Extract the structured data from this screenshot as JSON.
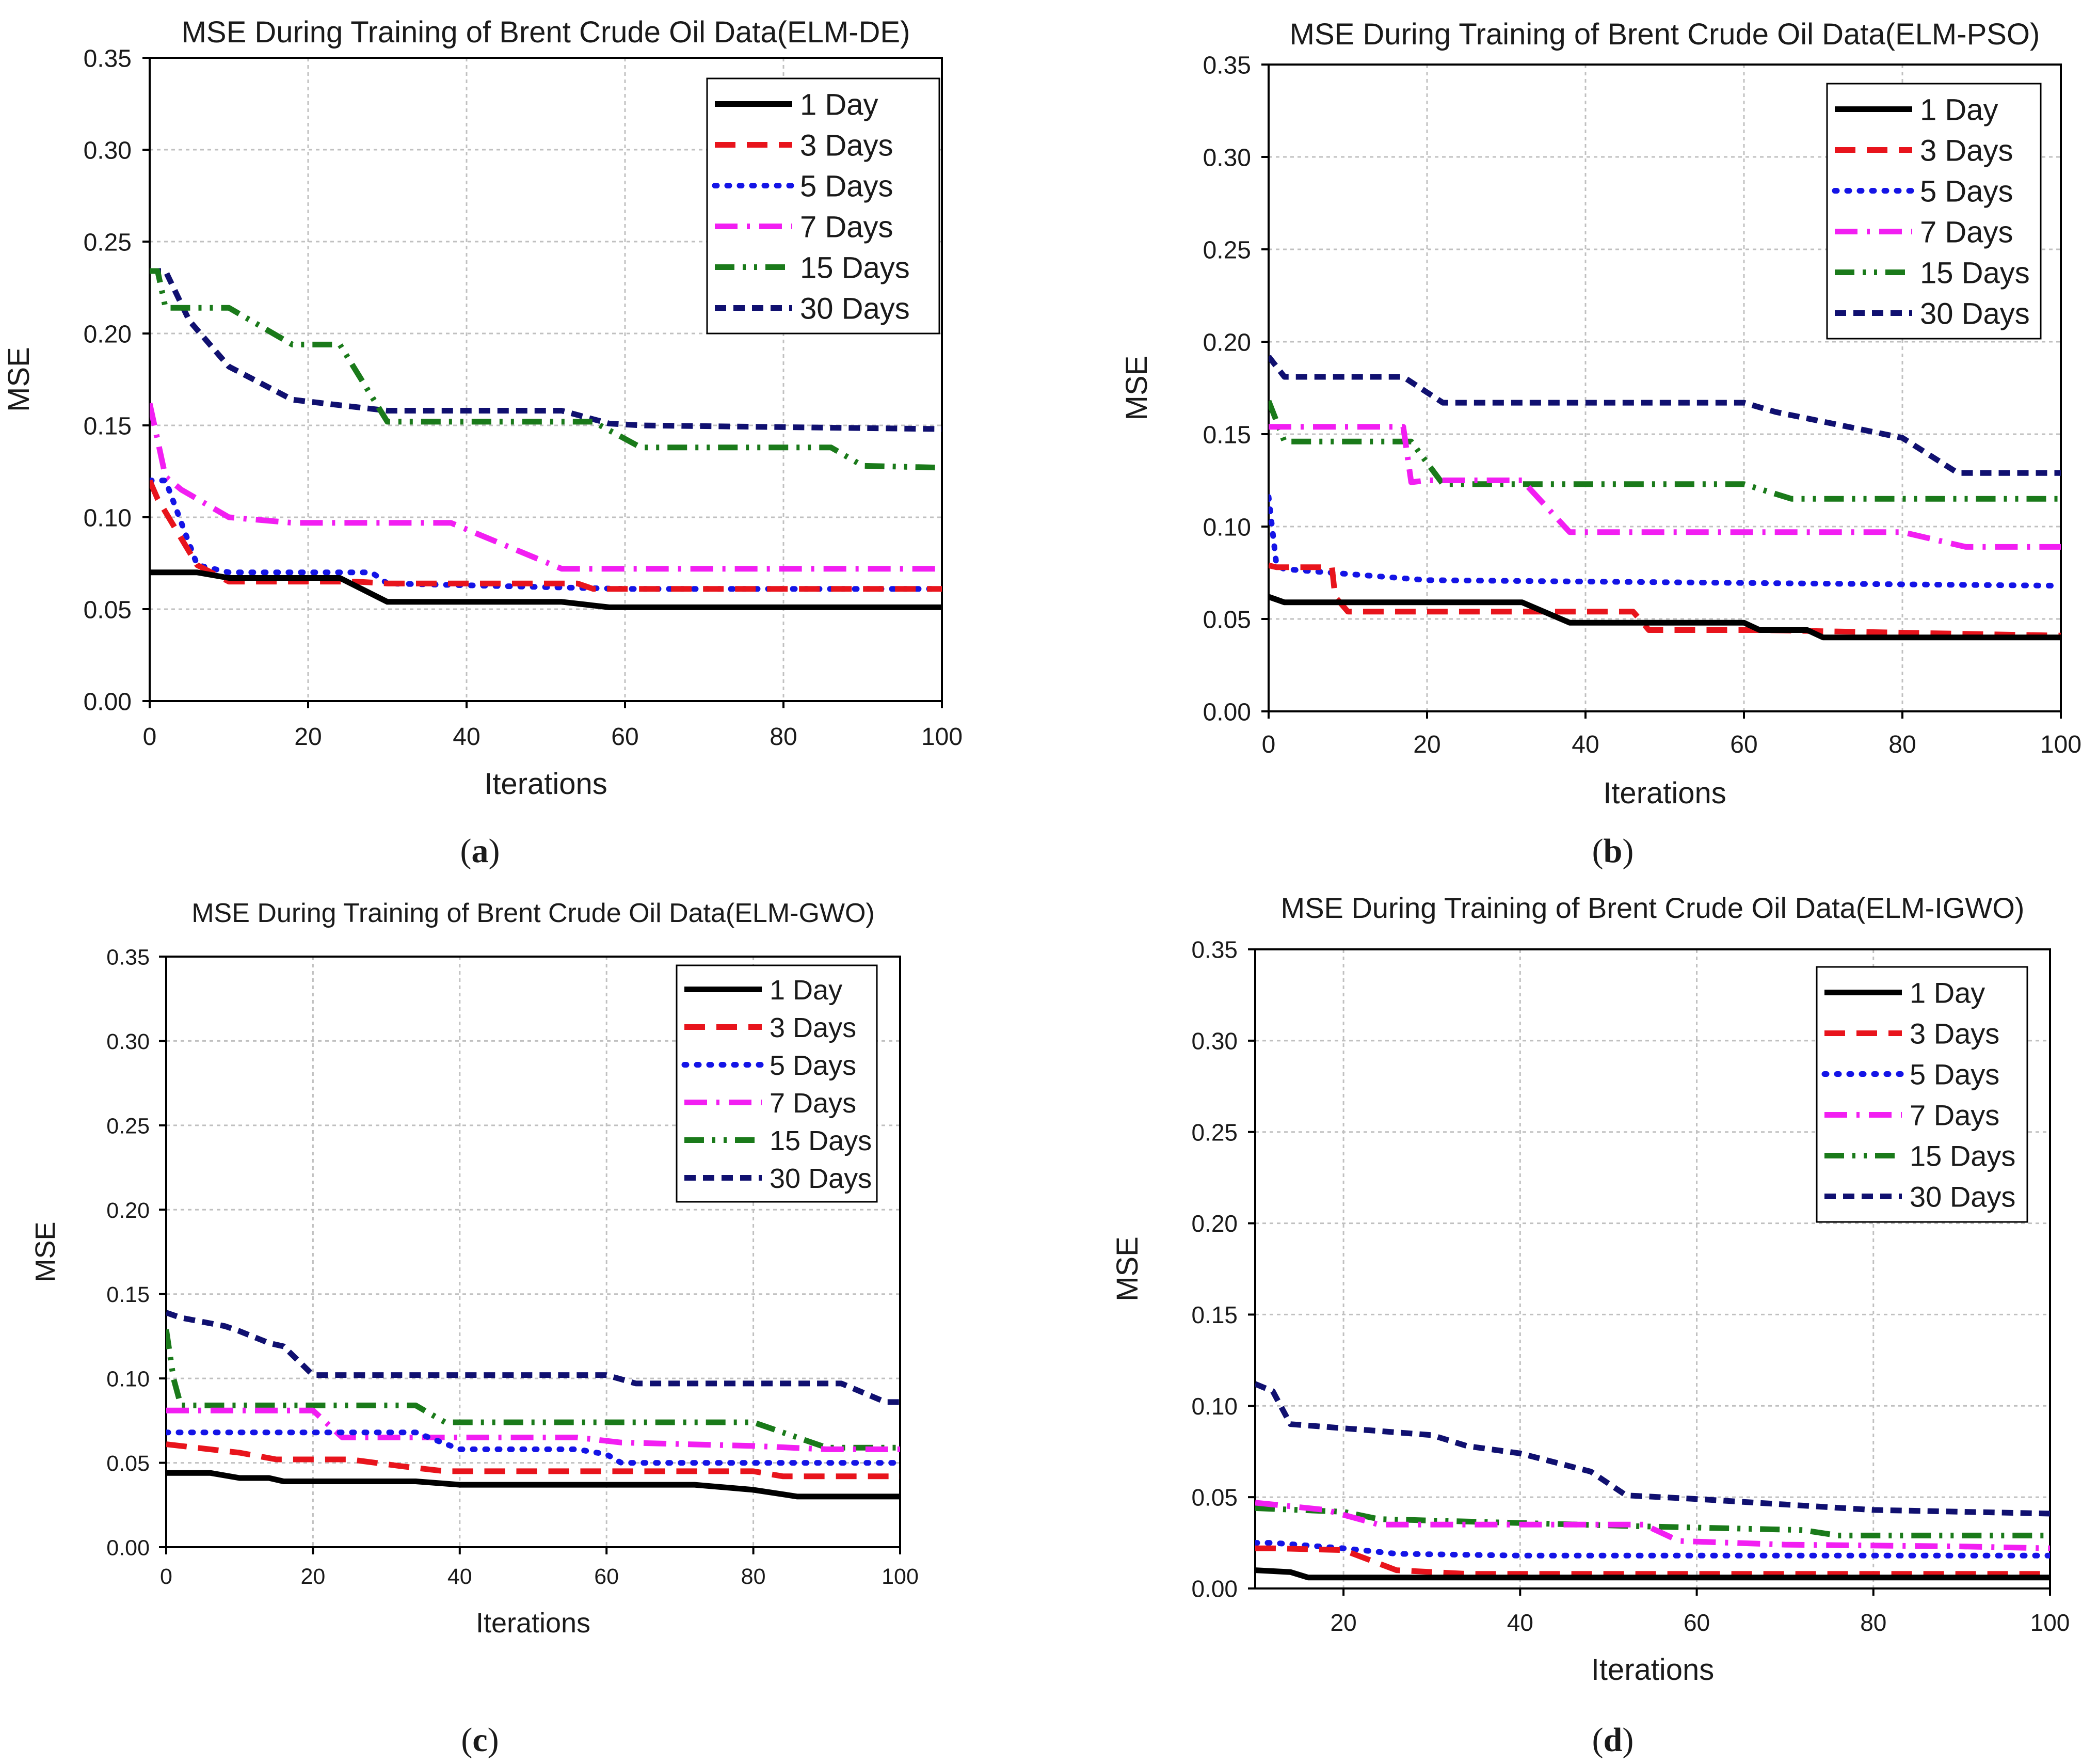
{
  "colors": {
    "1 Day": "#000000",
    "3 Days": "#e8141c",
    "5 Days": "#1414e6",
    "7 Days": "#f21ef2",
    "15 Days": "#1a7a1a",
    "30 Days": "#101070"
  },
  "chart_data": [
    {
      "panel": "a",
      "caption_label": "a",
      "type": "line",
      "title": "MSE During Training of Brent Crude Oil Data(ELM-DE)",
      "xlabel": "Iterations",
      "ylabel": "MSE",
      "xlim": [
        0,
        100
      ],
      "ylim": [
        0,
        0.35
      ],
      "xticks": [
        "0",
        "20",
        "40",
        "60",
        "80",
        "100"
      ],
      "yticks": [
        "0.00",
        "0.05",
        "0.10",
        "0.15",
        "0.20",
        "0.25",
        "0.30",
        "0.35"
      ],
      "grid": true,
      "legend_position": "top-right",
      "series": [
        {
          "name": "1 Day",
          "x": [
            0,
            6,
            10,
            24,
            30,
            52,
            58,
            100
          ],
          "y": [
            0.07,
            0.07,
            0.067,
            0.067,
            0.054,
            0.054,
            0.051,
            0.051
          ]
        },
        {
          "name": "3 Days",
          "x": [
            0,
            1,
            6,
            10,
            26,
            30,
            54,
            56,
            100
          ],
          "y": [
            0.12,
            0.11,
            0.074,
            0.065,
            0.065,
            0.064,
            0.064,
            0.061,
            0.061
          ]
        },
        {
          "name": "5 Days",
          "x": [
            0,
            2,
            6,
            10,
            28,
            30,
            60,
            100
          ],
          "y": [
            0.12,
            0.12,
            0.074,
            0.07,
            0.07,
            0.064,
            0.061,
            0.061
          ]
        },
        {
          "name": "7 Days",
          "x": [
            0,
            2,
            4,
            10,
            18,
            38,
            52,
            100
          ],
          "y": [
            0.162,
            0.122,
            0.115,
            0.1,
            0.097,
            0.097,
            0.072,
            0.072
          ]
        },
        {
          "name": "15 Days",
          "x": [
            0,
            1,
            2,
            10,
            18,
            24,
            30,
            56,
            62,
            86,
            90,
            100
          ],
          "y": [
            0.234,
            0.234,
            0.214,
            0.214,
            0.194,
            0.194,
            0.152,
            0.152,
            0.138,
            0.138,
            0.128,
            0.127
          ]
        },
        {
          "name": "30 Days",
          "x": [
            0,
            2,
            5,
            10,
            18,
            30,
            52,
            58,
            62,
            100
          ],
          "y": [
            0.234,
            0.234,
            0.207,
            0.182,
            0.164,
            0.158,
            0.158,
            0.151,
            0.15,
            0.148
          ]
        }
      ]
    },
    {
      "panel": "b",
      "caption_label": "b",
      "type": "line",
      "title": "MSE During Training of Brent Crude Oil Data(ELM-PSO)",
      "xlabel": "Iterations",
      "ylabel": "MSE",
      "xlim": [
        0,
        100
      ],
      "ylim": [
        0,
        0.35
      ],
      "xticks": [
        "0",
        "20",
        "40",
        "60",
        "80",
        "100"
      ],
      "yticks": [
        "0.00",
        "0.05",
        "0.10",
        "0.15",
        "0.20",
        "0.25",
        "0.30",
        "0.35"
      ],
      "grid": true,
      "legend_position": "top-right",
      "series": [
        {
          "name": "1 Day",
          "x": [
            0,
            2,
            32,
            38,
            60,
            62,
            68,
            70,
            100
          ],
          "y": [
            0.062,
            0.059,
            0.059,
            0.048,
            0.048,
            0.044,
            0.044,
            0.04,
            0.04
          ]
        },
        {
          "name": "3 Days",
          "x": [
            0,
            1,
            8,
            8.4,
            10,
            34,
            38,
            46,
            48,
            60,
            62,
            100
          ],
          "y": [
            0.079,
            0.078,
            0.078,
            0.062,
            0.054,
            0.054,
            0.054,
            0.054,
            0.044,
            0.044,
            0.044,
            0.041
          ]
        },
        {
          "name": "5 Days",
          "x": [
            0,
            1,
            2,
            20,
            100
          ],
          "y": [
            0.116,
            0.079,
            0.077,
            0.071,
            0.068
          ]
        },
        {
          "name": "7 Days",
          "x": [
            0,
            1,
            17,
            18,
            20,
            32,
            38,
            80,
            88,
            100
          ],
          "y": [
            0.154,
            0.154,
            0.154,
            0.124,
            0.125,
            0.125,
            0.097,
            0.097,
            0.089,
            0.089
          ]
        },
        {
          "name": "15 Days",
          "x": [
            0,
            2,
            18,
            22,
            60,
            66,
            100
          ],
          "y": [
            0.168,
            0.146,
            0.146,
            0.123,
            0.123,
            0.115,
            0.115
          ]
        },
        {
          "name": "30 Days",
          "x": [
            0,
            2,
            17,
            22,
            60,
            64,
            80,
            87,
            100
          ],
          "y": [
            0.192,
            0.181,
            0.181,
            0.167,
            0.167,
            0.162,
            0.148,
            0.129,
            0.129
          ]
        }
      ]
    },
    {
      "panel": "c",
      "caption_label": "c",
      "type": "line",
      "title": "MSE During Training of Brent Crude Oil Data(ELM-GWO)",
      "xlabel": "Iterations",
      "ylabel": "MSE",
      "xlim": [
        0,
        100
      ],
      "ylim": [
        0,
        0.35
      ],
      "xticks": [
        "0",
        "20",
        "40",
        "60",
        "80",
        "100"
      ],
      "yticks": [
        "0.00",
        "0.05",
        "0.10",
        "0.15",
        "0.20",
        "0.25",
        "0.30",
        "0.35"
      ],
      "grid": true,
      "legend_position": "top-right",
      "series": [
        {
          "name": "1 Day",
          "x": [
            0,
            6,
            10,
            14,
            16,
            34,
            40,
            72,
            80,
            86,
            100
          ],
          "y": [
            0.044,
            0.044,
            0.041,
            0.041,
            0.039,
            0.039,
            0.037,
            0.037,
            0.034,
            0.03,
            0.03
          ]
        },
        {
          "name": "3 Days",
          "x": [
            0,
            4,
            10,
            15,
            25,
            32,
            38,
            80,
            84,
            100
          ],
          "y": [
            0.061,
            0.059,
            0.056,
            0.052,
            0.052,
            0.048,
            0.045,
            0.045,
            0.042,
            0.042
          ]
        },
        {
          "name": "5 Days",
          "x": [
            0,
            12,
            34,
            40,
            56,
            60,
            62,
            72,
            90,
            100
          ],
          "y": [
            0.068,
            0.068,
            0.068,
            0.058,
            0.058,
            0.055,
            0.05,
            0.05,
            0.05,
            0.05
          ]
        },
        {
          "name": "7 Days",
          "x": [
            0,
            18,
            20,
            24,
            36,
            42,
            56,
            62,
            80,
            90,
            100
          ],
          "y": [
            0.081,
            0.081,
            0.081,
            0.065,
            0.065,
            0.065,
            0.065,
            0.062,
            0.06,
            0.058,
            0.058
          ]
        },
        {
          "name": "15 Days",
          "x": [
            0,
            1,
            2,
            10,
            34,
            38,
            80,
            84,
            90,
            100
          ],
          "y": [
            0.129,
            0.1,
            0.084,
            0.084,
            0.084,
            0.074,
            0.074,
            0.068,
            0.059,
            0.059
          ]
        },
        {
          "name": "30 Days",
          "x": [
            0,
            2,
            8,
            10,
            14,
            16,
            20,
            60,
            64,
            92,
            98,
            100
          ],
          "y": [
            0.139,
            0.136,
            0.131,
            0.128,
            0.121,
            0.119,
            0.102,
            0.102,
            0.097,
            0.097,
            0.086,
            0.086
          ]
        }
      ]
    },
    {
      "panel": "d",
      "caption_label": "d",
      "type": "line",
      "title": "MSE During Training of Brent Crude Oil Data(ELM-IGWO)",
      "xlabel": "Iterations",
      "ylabel": "MSE",
      "xlim": [
        10,
        100
      ],
      "ylim": [
        0,
        0.35
      ],
      "xticks": [
        "20",
        "40",
        "60",
        "80",
        "100"
      ],
      "yticks": [
        "0.00",
        "0.05",
        "0.10",
        "0.15",
        "0.20",
        "0.25",
        "0.30",
        "0.35"
      ],
      "grid": true,
      "legend_position": "top-right",
      "series": [
        {
          "name": "1 Day",
          "x": [
            10,
            14,
            16,
            100
          ],
          "y": [
            0.01,
            0.009,
            0.006,
            0.006
          ]
        },
        {
          "name": "3 Days",
          "x": [
            10,
            12,
            20,
            26,
            34,
            100
          ],
          "y": [
            0.022,
            0.022,
            0.021,
            0.01,
            0.008,
            0.008
          ]
        },
        {
          "name": "5 Days",
          "x": [
            10,
            12,
            20,
            26,
            40,
            100
          ],
          "y": [
            0.025,
            0.025,
            0.022,
            0.019,
            0.018,
            0.018
          ]
        },
        {
          "name": "7 Days",
          "x": [
            10,
            14,
            18,
            24,
            54,
            58,
            70,
            90,
            100
          ],
          "y": [
            0.047,
            0.045,
            0.043,
            0.035,
            0.035,
            0.026,
            0.024,
            0.023,
            0.022
          ]
        },
        {
          "name": "15 Days",
          "x": [
            10,
            20,
            24,
            54,
            72,
            76,
            100
          ],
          "y": [
            0.044,
            0.042,
            0.038,
            0.034,
            0.032,
            0.029,
            0.029
          ]
        },
        {
          "name": "30 Days",
          "x": [
            10,
            12,
            14,
            30,
            34,
            40,
            48,
            52,
            60,
            70,
            80,
            90,
            100
          ],
          "y": [
            0.112,
            0.108,
            0.09,
            0.084,
            0.078,
            0.074,
            0.064,
            0.051,
            0.049,
            0.046,
            0.043,
            0.042,
            0.041
          ]
        }
      ]
    }
  ]
}
